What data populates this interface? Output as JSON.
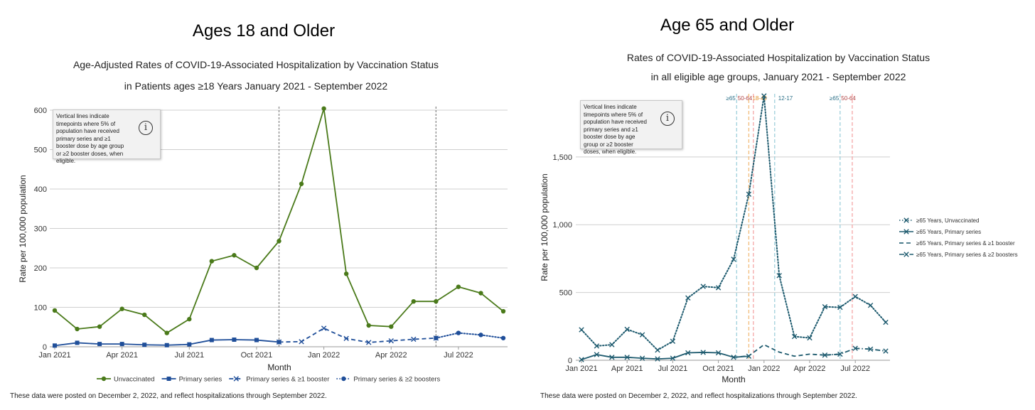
{
  "left": {
    "heading": "Ages 18 and Older",
    "footnote": "These data were posted on December 2, 2022, and reflect hospitalizations through September 2022.",
    "info_text": "Vertical lines indicate timepoints where 5% of population have received primary series and ≥1 booster dose by age group or ≥2 booster doses, when eligible.",
    "info_icon": "info-icon"
  },
  "right": {
    "heading": "Age 65 and Older",
    "footnote": "These data were posted on December 2, 2022, and reflect hospitalizations through September 2022.",
    "info_text": "Vertical lines indicate timepoints where 5% of population have received primary series and ≥1 booster dose by age group or ≥2 booster doses, when eligible.",
    "info_icon": "info-icon"
  },
  "chart_data": [
    {
      "type": "line",
      "title": "Age-Adjusted Rates of COVID-19-Associated Hospitalization by Vaccination Status",
      "subtitle": "in Patients ages ≥18 Years January 2021 - September 2022",
      "xlabel": "Month",
      "ylabel": "Rate per 100,000 population",
      "ylim": [
        0,
        600
      ],
      "yticks": [
        0,
        100,
        200,
        300,
        400,
        500,
        600
      ],
      "ytick_labels": [
        "0",
        "100",
        "200",
        "300",
        "400",
        "500",
        "600"
      ],
      "x_count": 21,
      "xticks": [
        {
          "index": 0,
          "label": "Jan 2021"
        },
        {
          "index": 3,
          "label": "Apr 2021"
        },
        {
          "index": 6,
          "label": "Jul 2021"
        },
        {
          "index": 9,
          "label": "Oct 2021"
        },
        {
          "index": 12,
          "label": "Jan 2022"
        },
        {
          "index": 15,
          "label": "Apr 2022"
        },
        {
          "index": 18,
          "label": "Jul 2022"
        }
      ],
      "grid": true,
      "legend_position": "bottom",
      "vertical_markers": [
        10,
        17
      ],
      "series": [
        {
          "name": "Unvaccinated",
          "color": "#4a7a1a",
          "dash": "solid",
          "marker": "circle",
          "values": [
            92,
            45,
            51,
            96,
            81,
            35,
            70,
            217,
            232,
            200,
            268,
            413,
            604,
            185,
            54,
            51,
            115,
            115,
            152,
            136,
            90
          ]
        },
        {
          "name": "Primary series",
          "color": "#1f4e99",
          "dash": "solid",
          "marker": "square",
          "values": [
            3,
            10,
            7,
            7,
            5,
            4,
            6,
            17,
            18,
            17,
            12,
            null,
            null,
            null,
            null,
            null,
            null,
            null,
            null,
            null,
            null
          ]
        },
        {
          "name": "Primary series & ≥1 booster",
          "color": "#1f4e99",
          "dash": "dashed",
          "marker": "x",
          "values": [
            null,
            null,
            null,
            null,
            null,
            null,
            null,
            null,
            null,
            null,
            12,
            13,
            47,
            21,
            11,
            15,
            19,
            22,
            null,
            null,
            null
          ]
        },
        {
          "name": "Primary series & ≥2 boosters",
          "color": "#1f4e99",
          "dash": "dotted",
          "marker": "circle",
          "values": [
            null,
            null,
            null,
            null,
            null,
            null,
            null,
            null,
            null,
            null,
            null,
            null,
            null,
            null,
            null,
            null,
            null,
            22,
            35,
            30,
            22
          ]
        }
      ]
    },
    {
      "type": "line",
      "title": "Rates of COVID-19-Associated Hospitalization by Vaccination Status",
      "subtitle": "in all eligible age groups, January 2021 - September 2022",
      "xlabel": "Month",
      "ylabel": "Rate per 100,000 population",
      "ylim": [
        0,
        1950
      ],
      "yticks": [
        0,
        500,
        1000,
        1500
      ],
      "ytick_labels": [
        "0",
        "500",
        "1,000",
        "1,500"
      ],
      "x_count": 21,
      "xticks": [
        {
          "index": 0,
          "label": "Jan 2021"
        },
        {
          "index": 3,
          "label": "Apr 2021"
        },
        {
          "index": 6,
          "label": "Jul 2021"
        },
        {
          "index": 9,
          "label": "Oct 2021"
        },
        {
          "index": 12,
          "label": "Jan 2022"
        },
        {
          "index": 15,
          "label": "Apr 2022"
        },
        {
          "index": 18,
          "label": "Jul 2022"
        }
      ],
      "grid": true,
      "legend_position": "right",
      "vertical_markers": [
        {
          "x": 10.2,
          "color": "#9fd0dc",
          "labels": [
            {
              "text": "≥65",
              "color": "#2b6f87"
            },
            {
              "text": "50-64",
              "color": "#b04040"
            }
          ]
        },
        {
          "x": 11.0,
          "color": "#f2bb7a",
          "labels": [
            {
              "text": "18-49",
              "color": "#e08a20"
            }
          ]
        },
        {
          "x": 11.3,
          "color": "#f4a6a6",
          "labels": []
        },
        {
          "x": 12.7,
          "color": "#9fd0dc",
          "labels": [
            {
              "text": "12-17",
              "color": "#2b6f87"
            }
          ]
        },
        {
          "x": 17.0,
          "color": "#9fd0dc",
          "labels": [
            {
              "text": "≥65",
              "color": "#2b6f87"
            },
            {
              "text": "50-64",
              "color": "#b04040"
            }
          ]
        },
        {
          "x": 17.8,
          "color": "#f4a6a6",
          "labels": []
        }
      ],
      "series": [
        {
          "name": "≥65 Years, Unvaccinated",
          "color": "#1d5a6e",
          "dash": "dotted",
          "marker": "x",
          "values": [
            225,
            105,
            115,
            228,
            188,
            75,
            140,
            460,
            545,
            535,
            745,
            1225,
            1950,
            625,
            175,
            165,
            395,
            390,
            470,
            405,
            280
          ]
        },
        {
          "name": "≥65 Years, Primary series",
          "color": "#1d5a6e",
          "dash": "solid",
          "marker": "x",
          "values": [
            5,
            42,
            22,
            22,
            15,
            10,
            15,
            55,
            58,
            55,
            22,
            30,
            null,
            null,
            null,
            null,
            null,
            null,
            null,
            null,
            null
          ]
        },
        {
          "name": "≥65 Years, Primary series & ≥1 booster",
          "color": "#1d5a6e",
          "dash": "dashed",
          "marker": "none",
          "values": [
            null,
            null,
            null,
            null,
            null,
            null,
            null,
            null,
            null,
            null,
            22,
            32,
            115,
            60,
            30,
            45,
            38,
            45,
            null,
            null,
            null
          ]
        },
        {
          "name": "≥65 Years, Primary series & ≥2 boosters",
          "color": "#1d5a6e",
          "dash": "dashdot",
          "marker": "x",
          "values": [
            null,
            null,
            null,
            null,
            null,
            null,
            null,
            null,
            null,
            null,
            null,
            null,
            null,
            null,
            null,
            null,
            38,
            45,
            88,
            82,
            68
          ]
        }
      ]
    }
  ]
}
